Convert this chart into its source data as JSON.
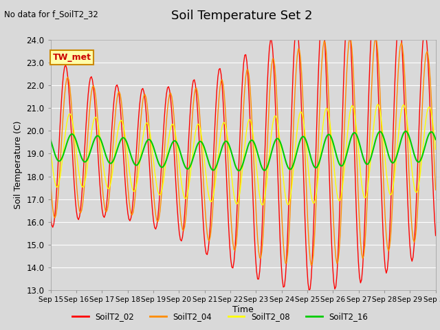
{
  "title": "Soil Temperature Set 2",
  "top_left_text": "No data for f_SoilT2_32",
  "annotation_text": "TW_met",
  "xlabel": "Time",
  "ylabel": "Soil Temperature (C)",
  "ylim": [
    13.0,
    24.0
  ],
  "yticks": [
    13.0,
    14.0,
    15.0,
    16.0,
    17.0,
    18.0,
    19.0,
    20.0,
    21.0,
    22.0,
    23.0,
    24.0
  ],
  "xtick_labels": [
    "Sep 15",
    "Sep 16",
    "Sep 17",
    "Sep 18",
    "Sep 19",
    "Sep 20",
    "Sep 21",
    "Sep 22",
    "Sep 23",
    "Sep 24",
    "Sep 25",
    "Sep 26",
    "Sep 27",
    "Sep 28",
    "Sep 29",
    "Sep 30"
  ],
  "series_colors": [
    "#ff0000",
    "#ff8c00",
    "#ffff00",
    "#00cc00"
  ],
  "series_labels": [
    "SoilT2_02",
    "SoilT2_04",
    "SoilT2_08",
    "SoilT2_16"
  ],
  "background_color": "#d9d9d9",
  "plot_bg_color": "#d9d9d9",
  "title_fontsize": 13,
  "annotation_bg": "#ffffaa",
  "annotation_border": "#cc8800",
  "grid_color": "#ffffff"
}
